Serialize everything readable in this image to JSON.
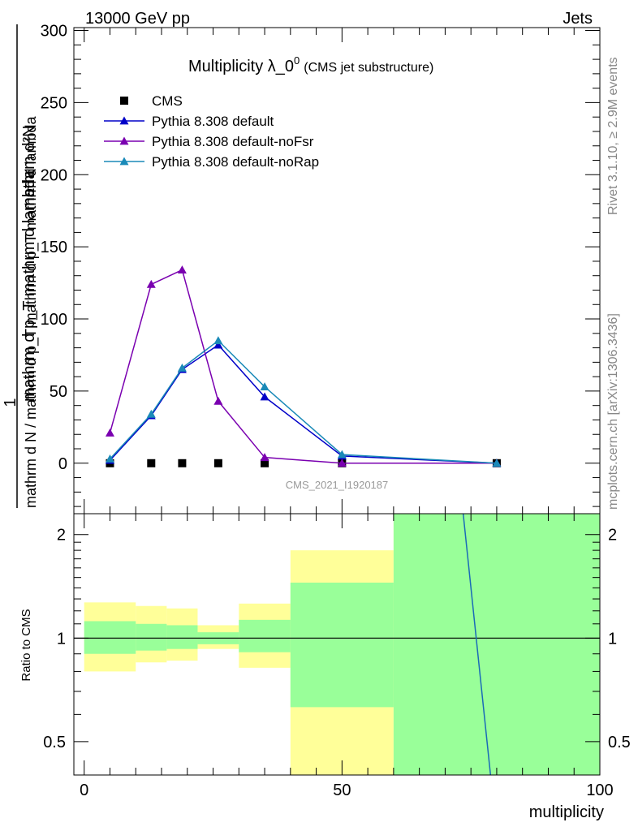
{
  "header": {
    "left": "13000 GeV pp",
    "right": "Jets"
  },
  "side_text": {
    "rivet": "Rivet 3.1.10, ≥ 2.9M events",
    "mcplots": "mcplots.cern.ch [arXiv:1306.3436]"
  },
  "chart_data": [
    {
      "type": "line",
      "title_main": "Multiplicity λ_0",
      "title_sup": "0",
      "title_sub": "(CMS jet substructure)",
      "ylabel_upper": "mathrm d²N",
      "ylabel_lower": "1",
      "ylabel_frac_num": "mathrm d p_T mathrm d lambda",
      "ylabel_frac_den": "mathrm d N / mathrm d p_T mathrm d p_T mathrm d lambda",
      "watermark": "CMS_2021_I1920187",
      "xlim": [
        -2,
        100
      ],
      "ylim": [
        -35,
        302
      ],
      "yticks": [
        0,
        50,
        100,
        150,
        200,
        250,
        300
      ],
      "xticks": [
        0,
        50,
        100
      ],
      "legend_position": "top-left",
      "series": [
        {
          "name": "CMS",
          "marker": "square",
          "color": "#000000",
          "connected": false,
          "x": [
            5,
            13,
            19,
            26,
            35,
            50,
            80
          ],
          "y": [
            0,
            0,
            0,
            0,
            0,
            0,
            0
          ]
        },
        {
          "name": "Pythia 8.308 default",
          "marker": "triangle",
          "color": "#0000c8",
          "connected": true,
          "x": [
            5,
            13,
            19,
            26,
            35,
            50,
            80
          ],
          "y": [
            2,
            33,
            65,
            82,
            46,
            5,
            0
          ]
        },
        {
          "name": "Pythia 8.308 default-noFsr",
          "marker": "triangle",
          "color": "#7a00b0",
          "connected": true,
          "x": [
            5,
            13,
            19,
            26,
            35,
            50,
            80
          ],
          "y": [
            21,
            124,
            134,
            43,
            4,
            0,
            0
          ]
        },
        {
          "name": "Pythia 8.308 default-noRap",
          "marker": "triangle",
          "color": "#1a8ab8",
          "connected": true,
          "x": [
            5,
            13,
            19,
            26,
            35,
            50,
            80
          ],
          "y": [
            3,
            34,
            66,
            85,
            53,
            6,
            0
          ]
        }
      ]
    },
    {
      "type": "area",
      "ylabel": "Ratio to CMS",
      "xlabel": "multiplicity",
      "xlim": [
        -2,
        100
      ],
      "ylim": [
        0.4,
        2.3
      ],
      "yticks": [
        0.5,
        1,
        2
      ],
      "xticks": [
        0,
        50,
        100
      ],
      "reference_line": 1,
      "bands": [
        {
          "x0": 0,
          "x1": 10,
          "yellow": [
            0.8,
            1.27
          ],
          "green": [
            0.9,
            1.12
          ]
        },
        {
          "x0": 10,
          "x1": 16,
          "yellow": [
            0.85,
            1.24
          ],
          "green": [
            0.92,
            1.1
          ]
        },
        {
          "x0": 16,
          "x1": 22,
          "yellow": [
            0.86,
            1.22
          ],
          "green": [
            0.93,
            1.09
          ]
        },
        {
          "x0": 22,
          "x1": 30,
          "yellow": [
            0.93,
            1.09
          ],
          "green": [
            0.96,
            1.04
          ]
        },
        {
          "x0": 30,
          "x1": 40,
          "yellow": [
            0.82,
            1.26
          ],
          "green": [
            0.91,
            1.13
          ]
        },
        {
          "x0": 40,
          "x1": 60,
          "yellow": [
            0.4,
            1.8
          ],
          "green": [
            0.63,
            1.45
          ]
        },
        {
          "x0": 60,
          "x1": 100,
          "yellow": [
            0.4,
            2.3
          ],
          "green": [
            0.4,
            2.3
          ]
        }
      ],
      "ratio_line": {
        "color": "#1a6ab8",
        "x": [
          73.5,
          78.8
        ],
        "y": [
          2.3,
          0.4
        ]
      }
    }
  ]
}
